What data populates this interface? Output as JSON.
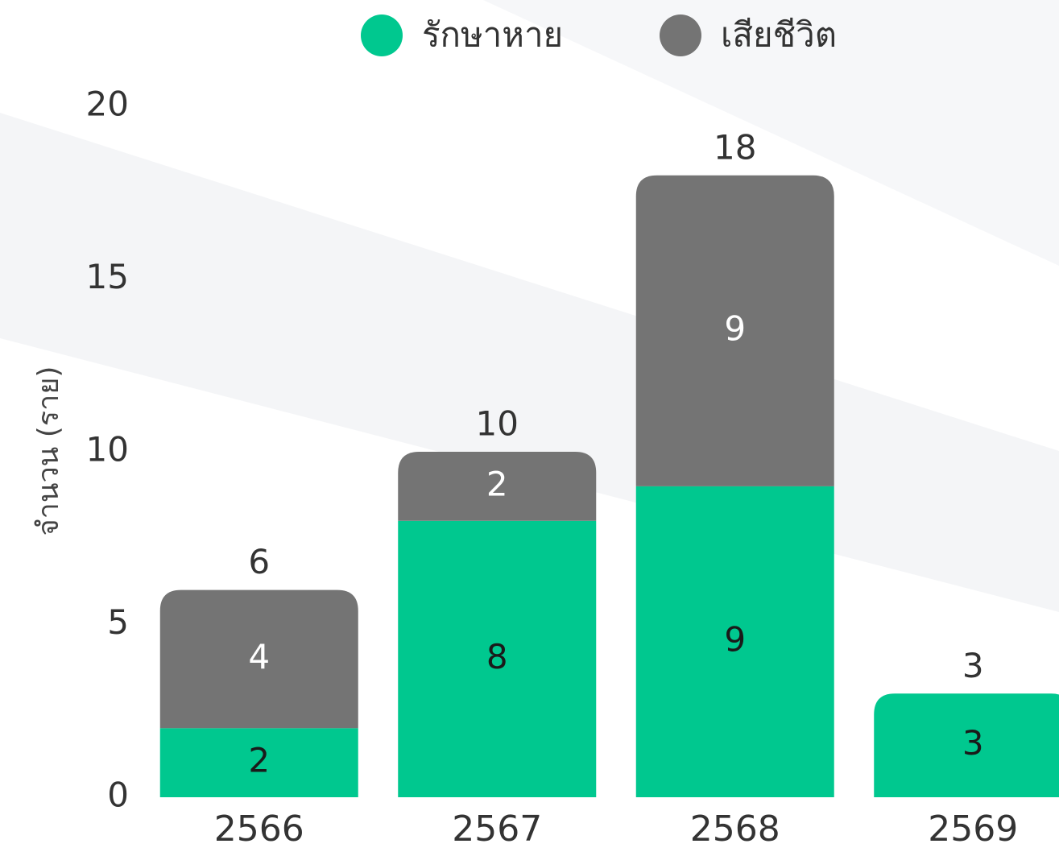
{
  "chart_data": {
    "type": "stacked-bar",
    "y_label": "จำนวน (ราย)",
    "categories": [
      "2566",
      "2567",
      "2568",
      "2569"
    ],
    "series": [
      {
        "name": "รักษาหาย",
        "color": "#00c88f",
        "values": [
          2,
          8,
          9,
          3
        ]
      },
      {
        "name": "เสียชีวิต",
        "color": "#747474",
        "values": [
          4,
          2,
          9,
          0
        ]
      }
    ],
    "totals": [
      6,
      10,
      18,
      3
    ],
    "ylim": [
      0,
      20
    ],
    "yticks": [
      0,
      5,
      10,
      15,
      20
    ],
    "grid": false,
    "legend": "top"
  }
}
